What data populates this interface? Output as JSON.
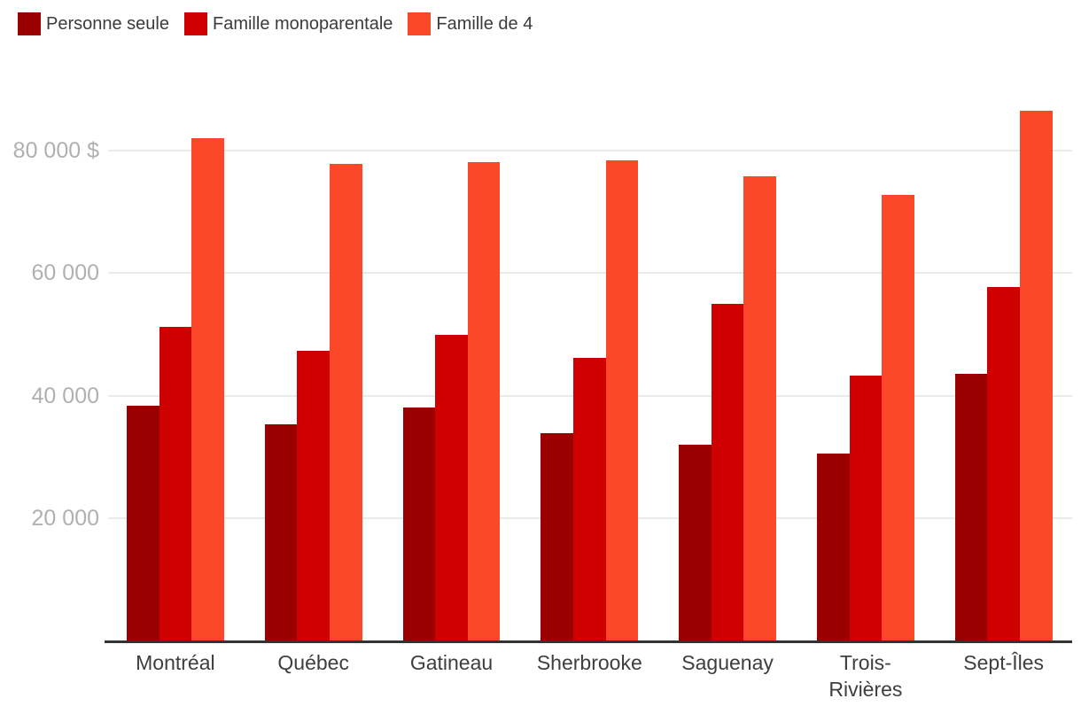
{
  "chart_data": {
    "type": "bar",
    "title": "",
    "xlabel": "",
    "ylabel": "",
    "currency_suffix": "$",
    "categories": [
      "Montréal",
      "Québec",
      "Gatineau",
      "Sherbrooke",
      "Saguenay",
      "Trois-Rivières",
      "Sept-Îles"
    ],
    "series": [
      {
        "name": "Personne seule",
        "color": "#9a0000",
        "values": [
          38300,
          35300,
          38000,
          33800,
          32000,
          30500,
          43500
        ]
      },
      {
        "name": "Famille monoparentale",
        "color": "#ce0000",
        "values": [
          51200,
          47300,
          49900,
          46100,
          55000,
          43300,
          57700
        ]
      },
      {
        "name": "Famille de 4",
        "color": "#fb4828",
        "values": [
          82000,
          77800,
          78100,
          78400,
          75800,
          72800,
          86500
        ]
      }
    ],
    "y_ticks": [
      {
        "value": 20000,
        "label": "20 000"
      },
      {
        "value": 40000,
        "label": "40 000"
      },
      {
        "value": 60000,
        "label": "60 000"
      },
      {
        "value": 80000,
        "label": "80 000 $"
      }
    ],
    "ylim": [
      0,
      93000
    ],
    "grid": "horizontal",
    "legend_position": "top-left"
  },
  "colors": {
    "background": "#ffffff",
    "axis_line": "#333333",
    "gridline": "#eaeaea",
    "y_tick_text": "#b0b0b0",
    "x_tick_text": "#3e3e3e",
    "legend_text": "#3b3b3b"
  }
}
